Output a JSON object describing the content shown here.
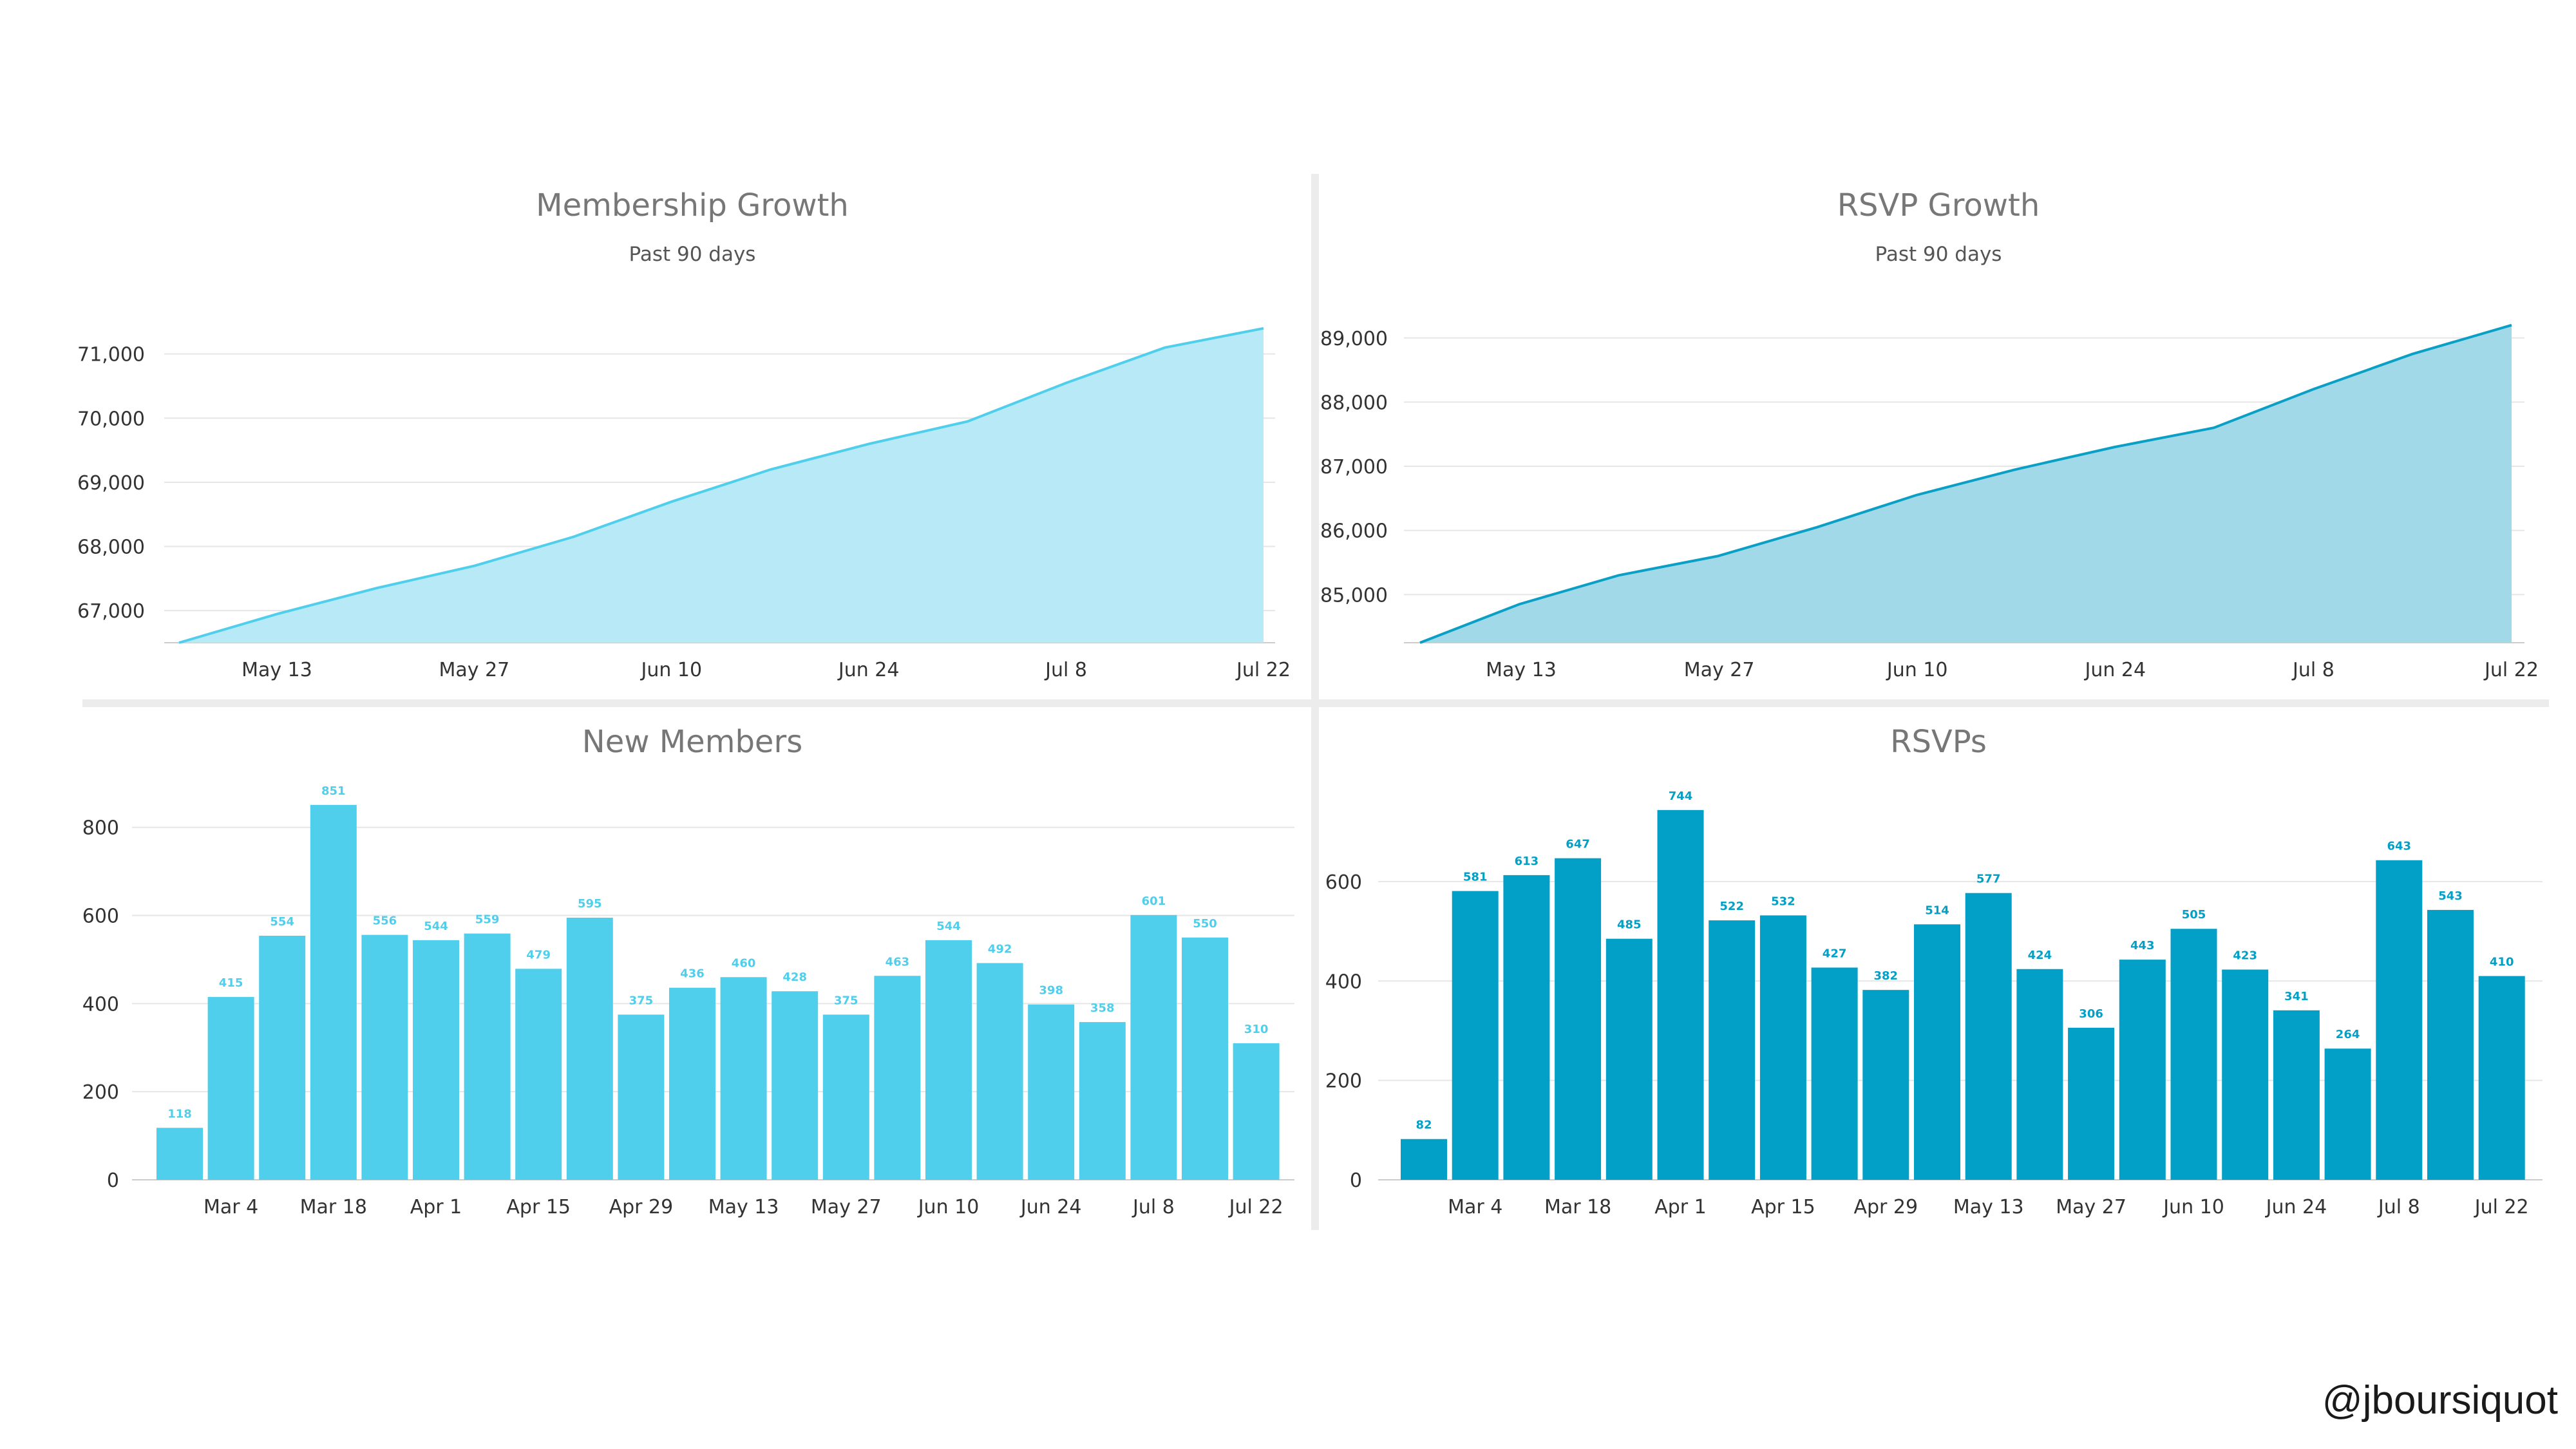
{
  "footer": {
    "handle": "@jboursiquot"
  },
  "colors": {
    "light": "#4fcfec",
    "light_fill": "#b8e9f7",
    "dark": "#0aa0c6",
    "dark_fill": "#a2d9e8",
    "bar_dark": "#02a0c6",
    "axis_text": "#333333",
    "title_text": "#777777",
    "grid": "#e6e6e6"
  },
  "chart_data": [
    {
      "type": "area",
      "title": "Membership Growth",
      "subtitle": "Past 90 days",
      "tick_labels": [
        "May 13",
        "May 27",
        "Jun 10",
        "Jun 24",
        "Jul 8",
        "Jul 22"
      ],
      "x": [
        "May 6",
        "May 13",
        "May 20",
        "May 27",
        "Jun 3",
        "Jun 10",
        "Jun 17",
        "Jun 24",
        "Jul 1",
        "Jul 8",
        "Jul 15",
        "Jul 22"
      ],
      "values": [
        66500,
        66950,
        67350,
        67700,
        68150,
        68700,
        69200,
        69600,
        69950,
        70550,
        71100,
        71400
      ],
      "yticks": [
        67000,
        68000,
        69000,
        70000,
        71000
      ],
      "ylim": [
        66500,
        71850
      ],
      "color": "light"
    },
    {
      "type": "area",
      "title": "RSVP Growth",
      "subtitle": "Past 90 days",
      "tick_labels": [
        "May 13",
        "May 27",
        "Jun 10",
        "Jun 24",
        "Jul 8",
        "Jul 22"
      ],
      "x": [
        "May 6",
        "May 13",
        "May 20",
        "May 27",
        "Jun 3",
        "Jun 10",
        "Jun 17",
        "Jun 24",
        "Jul 1",
        "Jul 8",
        "Jul 15",
        "Jul 22"
      ],
      "values": [
        84250,
        84850,
        85300,
        85600,
        86050,
        86550,
        86950,
        87300,
        87600,
        88200,
        88750,
        89200
      ],
      "yticks": [
        85000,
        86000,
        87000,
        88000,
        89000
      ],
      "ylim": [
        84250,
        89600
      ],
      "color": "dark"
    },
    {
      "type": "bar",
      "title": "New Members",
      "subtitle": "",
      "tick_labels": [
        "Mar 4",
        "Mar 18",
        "Apr 1",
        "Apr 15",
        "Apr 29",
        "May 13",
        "May 27",
        "Jun 10",
        "Jun 24",
        "Jul 8",
        "Jul 22"
      ],
      "values": [
        118,
        415,
        554,
        851,
        556,
        544,
        559,
        479,
        595,
        375,
        436,
        460,
        428,
        375,
        463,
        544,
        492,
        398,
        358,
        601,
        550,
        310
      ],
      "yticks": [
        0,
        200,
        400,
        600,
        800
      ],
      "ylim": [
        0,
        880
      ],
      "color": "light"
    },
    {
      "type": "bar",
      "title": "RSVPs",
      "subtitle": "",
      "tick_labels": [
        "Mar 4",
        "Mar 18",
        "Apr 1",
        "Apr 15",
        "Apr 29",
        "May 13",
        "May 27",
        "Jun 10",
        "Jun 24",
        "Jul 8",
        "Jul 22"
      ],
      "values": [
        82,
        581,
        613,
        647,
        485,
        744,
        522,
        532,
        427,
        382,
        514,
        577,
        424,
        306,
        443,
        505,
        423,
        341,
        264,
        643,
        543,
        410
      ],
      "yticks": [
        0,
        200,
        400,
        600
      ],
      "ylim": [
        0,
        780
      ],
      "color": "bar_dark"
    }
  ]
}
